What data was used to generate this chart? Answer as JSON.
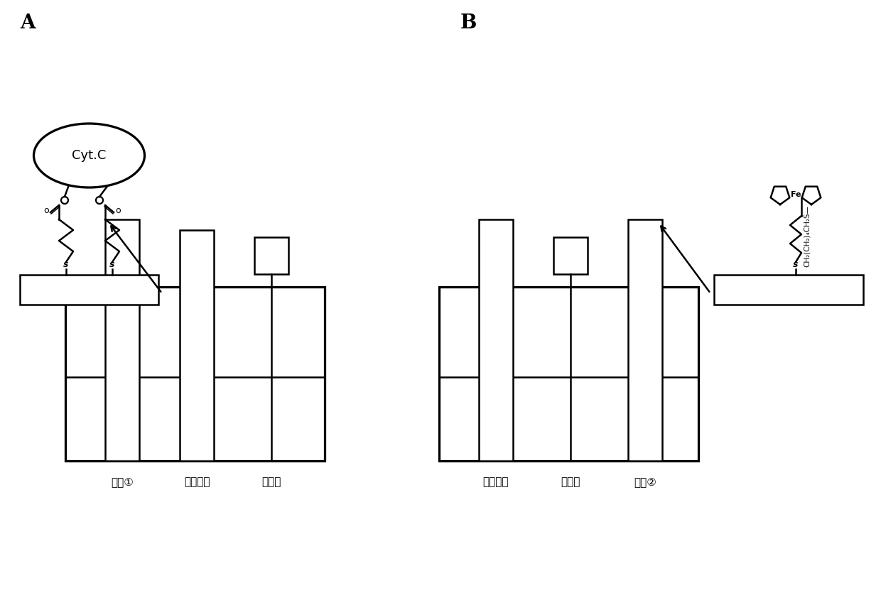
{
  "bg_color": "#ffffff",
  "text_color": "#000000",
  "label_A": "A",
  "label_B": "B",
  "label_cytc": "Cyt.C",
  "label_e1": "电极①",
  "label_ref1": "参比电极",
  "label_ctr1": "对电极",
  "label_ref2": "参比电极",
  "label_ctr2": "对电极",
  "label_e2": "电极②",
  "linewidth": 1.8
}
